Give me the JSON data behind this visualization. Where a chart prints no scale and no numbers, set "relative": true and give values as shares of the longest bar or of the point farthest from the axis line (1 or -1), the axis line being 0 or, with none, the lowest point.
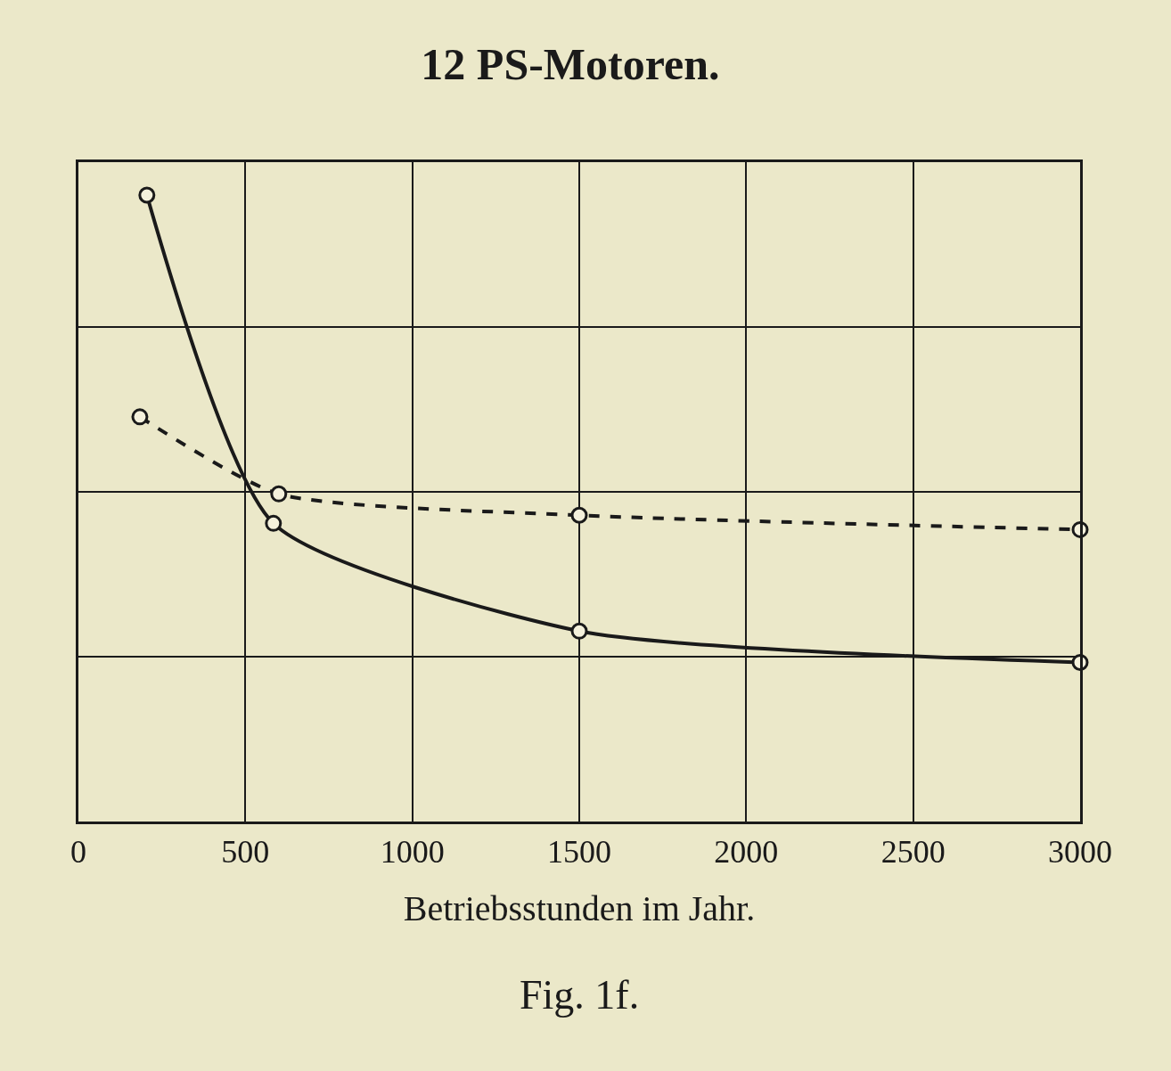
{
  "chart_data": {
    "type": "line",
    "title": "12 PS-Motoren.",
    "xlabel": "Betriebsstunden im Jahr.",
    "annotations": [
      "Fig. 1f."
    ],
    "relative": true,
    "xlim": [
      0,
      3000
    ],
    "xticks": [
      0,
      500,
      1000,
      1500,
      2000,
      2500,
      3000
    ],
    "grid": true,
    "legend": false,
    "tick_labels": "x",
    "marker": "circle",
    "series": [
      {
        "color": "#1a1a1a",
        "line_style": "solid",
        "x": [
          205,
          584,
          1500,
          3000
        ],
        "values": [
          1,
          0.476,
          0.304,
          0.254
        ]
      },
      {
        "color": "#1a1a1a",
        "line_style": "dashed",
        "x": [
          184,
          600,
          1500,
          3000
        ],
        "values": [
          0.646,
          0.523,
          0.489,
          0.466
        ]
      }
    ]
  }
}
